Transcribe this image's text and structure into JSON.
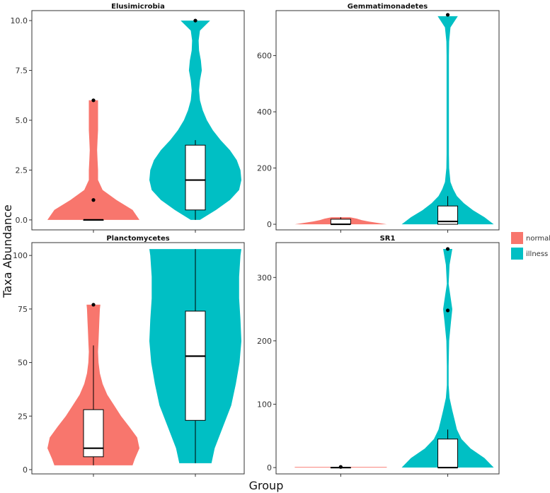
{
  "chart_data": {
    "type": "violin",
    "ylabel": "Taxa Abundance",
    "xlabel": "Group",
    "legend": {
      "position": "right",
      "entries": [
        {
          "label": "normal",
          "color": "#F8766D"
        },
        {
          "label": "illness",
          "color": "#00BFC4"
        }
      ]
    },
    "grid": false,
    "panels": [
      {
        "title": "Elusimicrobia",
        "ylim": [
          -0.5,
          10.5
        ],
        "yticks": [
          0,
          2.5,
          5,
          7.5,
          10
        ],
        "ytick_labels": [
          "0.0",
          "2.5",
          "5.0",
          "7.5",
          "10.0"
        ],
        "groups": [
          {
            "name": "normal",
            "box": {
              "min": 0,
              "q1": 0,
              "median": 0,
              "q3": 0,
              "max": 0
            },
            "outliers": [
              1,
              6
            ],
            "violin": {
              "y": [
                0,
                0.5,
                1,
                1.5,
                2,
                2.5,
                3,
                3.5,
                4,
                4.5,
                5,
                5.5,
                6
              ],
              "width": [
                1.0,
                0.85,
                0.5,
                0.2,
                0.1,
                0.1,
                0.09,
                0.08,
                0.09,
                0.1,
                0.1,
                0.1,
                0.1
              ]
            }
          },
          {
            "name": "illness",
            "box": {
              "min": 0,
              "q1": 0.5,
              "median": 2,
              "q3": 3.75,
              "max": 4
            },
            "outliers": [
              10
            ],
            "violin": {
              "y": [
                0,
                0.5,
                1,
                1.5,
                2,
                2.5,
                3,
                3.5,
                4,
                4.5,
                5,
                5.5,
                6,
                6.5,
                7,
                7.5,
                8,
                8.5,
                9,
                9.5,
                10
              ],
              "width": [
                0.1,
                0.45,
                0.75,
                0.95,
                1.0,
                0.98,
                0.9,
                0.75,
                0.55,
                0.38,
                0.25,
                0.16,
                0.1,
                0.08,
                0.1,
                0.14,
                0.12,
                0.08,
                0.07,
                0.1,
                0.32
              ]
            }
          }
        ]
      },
      {
        "title": "Gemmatimonadetes",
        "ylim": [
          -20,
          760
        ],
        "yticks": [
          0,
          200,
          400,
          600
        ],
        "ytick_labels": [
          "0",
          "200",
          "400",
          "600"
        ],
        "groups": [
          {
            "name": "normal",
            "box": {
              "min": 0,
              "q1": 0,
              "median": 0,
              "q3": 18,
              "max": 25
            },
            "outliers": [],
            "violin": {
              "y": [
                0,
                5,
                10,
                15,
                20,
                25
              ],
              "width": [
                1.0,
                0.8,
                0.6,
                0.45,
                0.35,
                0.2
              ]
            }
          },
          {
            "name": "illness",
            "box": {
              "min": 0,
              "q1": 0,
              "median": 10,
              "q3": 65,
              "max": 100
            },
            "outliers": [
              745
            ],
            "violin": {
              "y": [
                0,
                25,
                50,
                75,
                100,
                125,
                150,
                200,
                250,
                300,
                400,
                500,
                600,
                650,
                700,
                740
              ],
              "width": [
                1.0,
                0.8,
                0.55,
                0.35,
                0.2,
                0.12,
                0.06,
                0.03,
                0.025,
                0.025,
                0.025,
                0.025,
                0.025,
                0.03,
                0.06,
                0.22
              ]
            }
          }
        ]
      },
      {
        "title": "Planctomycetes",
        "ylim": [
          -2,
          106
        ],
        "yticks": [
          0,
          25,
          50,
          75,
          100
        ],
        "ytick_labels": [
          "0",
          "25",
          "50",
          "75",
          "100"
        ],
        "groups": [
          {
            "name": "normal",
            "box": {
              "min": 2,
              "q1": 6,
              "median": 10,
              "q3": 28,
              "max": 58
            },
            "outliers": [
              77
            ],
            "violin": {
              "y": [
                2,
                5,
                10,
                15,
                20,
                25,
                30,
                35,
                40,
                45,
                50,
                55,
                60,
                65,
                70,
                75,
                77
              ],
              "width": [
                0.85,
                0.9,
                1.0,
                0.95,
                0.78,
                0.6,
                0.45,
                0.3,
                0.2,
                0.14,
                0.11,
                0.1,
                0.11,
                0.12,
                0.13,
                0.14,
                0.15
              ]
            }
          },
          {
            "name": "illness",
            "box": {
              "min": 3,
              "q1": 23,
              "median": 53,
              "q3": 74,
              "max": 103
            },
            "outliers": [],
            "violin": {
              "y": [
                3,
                10,
                20,
                30,
                40,
                50,
                60,
                70,
                80,
                90,
                100,
                103
              ],
              "width": [
                0.35,
                0.42,
                0.6,
                0.78,
                0.88,
                0.96,
                1.0,
                0.98,
                0.95,
                0.95,
                0.98,
                1.0
              ]
            }
          }
        ]
      },
      {
        "title": "SR1",
        "ylim": [
          -10,
          355
        ],
        "yticks": [
          0,
          100,
          200,
          300
        ],
        "ytick_labels": [
          "0",
          "100",
          "200",
          "300"
        ],
        "groups": [
          {
            "name": "normal",
            "box": {
              "min": 0,
              "q1": 0,
              "median": 0,
              "q3": 0,
              "max": 0
            },
            "outliers": [
              1
            ],
            "violin": {
              "y": [
                0,
                1
              ],
              "width": [
                1.0,
                1.0
              ]
            }
          },
          {
            "name": "illness",
            "box": {
              "min": 0,
              "q1": 0,
              "median": 0,
              "q3": 45,
              "max": 60
            },
            "outliers": [
              248,
              345
            ],
            "violin": {
              "y": [
                0,
                15,
                30,
                45,
                60,
                75,
                90,
                110,
                130,
                160,
                200,
                230,
                250,
                270,
                290,
                320,
                345
              ],
              "width": [
                1.0,
                0.8,
                0.5,
                0.3,
                0.2,
                0.15,
                0.1,
                0.04,
                0.02,
                0.02,
                0.03,
                0.07,
                0.1,
                0.06,
                0.02,
                0.04,
                0.1
              ]
            }
          }
        ]
      }
    ]
  }
}
